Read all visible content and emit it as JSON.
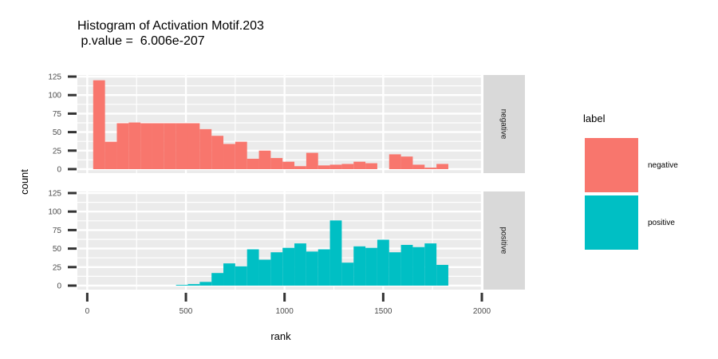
{
  "chart_data": {
    "type": "bar",
    "title_line1": "Histogram of Activation Motif.203",
    "title_line2": " p.value =  6.006e-207",
    "xlabel": "rank",
    "ylabel": "count",
    "xlim": [
      -50,
      2000
    ],
    "ylim": [
      0,
      125
    ],
    "x_ticks": [
      0,
      500,
      1000,
      1500,
      2000
    ],
    "y_ticks": [
      0,
      25,
      50,
      75,
      100,
      125
    ],
    "bin_width": 60,
    "legend": {
      "title": "label",
      "entries": [
        "negative",
        "positive"
      ],
      "position": "right"
    },
    "grid": true,
    "facets": [
      {
        "name": "negative",
        "color": "#F8766D",
        "bins": [
          {
            "x0": 30,
            "count": 120
          },
          {
            "x0": 90,
            "count": 37
          },
          {
            "x0": 150,
            "count": 62
          },
          {
            "x0": 210,
            "count": 63
          },
          {
            "x0": 270,
            "count": 62
          },
          {
            "x0": 330,
            "count": 62
          },
          {
            "x0": 390,
            "count": 62
          },
          {
            "x0": 450,
            "count": 62
          },
          {
            "x0": 510,
            "count": 62
          },
          {
            "x0": 570,
            "count": 54
          },
          {
            "x0": 630,
            "count": 45
          },
          {
            "x0": 690,
            "count": 34
          },
          {
            "x0": 750,
            "count": 37
          },
          {
            "x0": 810,
            "count": 14
          },
          {
            "x0": 870,
            "count": 25
          },
          {
            "x0": 930,
            "count": 15
          },
          {
            "x0": 990,
            "count": 10
          },
          {
            "x0": 1050,
            "count": 4
          },
          {
            "x0": 1110,
            "count": 22
          },
          {
            "x0": 1170,
            "count": 5
          },
          {
            "x0": 1230,
            "count": 6
          },
          {
            "x0": 1290,
            "count": 7
          },
          {
            "x0": 1350,
            "count": 10
          },
          {
            "x0": 1410,
            "count": 8
          },
          {
            "x0": 1470,
            "count": 0
          },
          {
            "x0": 1530,
            "count": 20
          },
          {
            "x0": 1590,
            "count": 17
          },
          {
            "x0": 1650,
            "count": 6
          },
          {
            "x0": 1710,
            "count": 2
          },
          {
            "x0": 1770,
            "count": 7
          }
        ]
      },
      {
        "name": "positive",
        "color": "#00BFC4",
        "bins": [
          {
            "x0": 450,
            "count": 1
          },
          {
            "x0": 510,
            "count": 2
          },
          {
            "x0": 570,
            "count": 5
          },
          {
            "x0": 630,
            "count": 17
          },
          {
            "x0": 690,
            "count": 30
          },
          {
            "x0": 750,
            "count": 26
          },
          {
            "x0": 810,
            "count": 49
          },
          {
            "x0": 870,
            "count": 35
          },
          {
            "x0": 930,
            "count": 45
          },
          {
            "x0": 990,
            "count": 51
          },
          {
            "x0": 1050,
            "count": 57
          },
          {
            "x0": 1110,
            "count": 46
          },
          {
            "x0": 1170,
            "count": 49
          },
          {
            "x0": 1230,
            "count": 88
          },
          {
            "x0": 1290,
            "count": 31
          },
          {
            "x0": 1350,
            "count": 53
          },
          {
            "x0": 1410,
            "count": 51
          },
          {
            "x0": 1470,
            "count": 62
          },
          {
            "x0": 1530,
            "count": 45
          },
          {
            "x0": 1590,
            "count": 55
          },
          {
            "x0": 1650,
            "count": 52
          },
          {
            "x0": 1710,
            "count": 57
          },
          {
            "x0": 1770,
            "count": 28
          }
        ]
      }
    ]
  }
}
